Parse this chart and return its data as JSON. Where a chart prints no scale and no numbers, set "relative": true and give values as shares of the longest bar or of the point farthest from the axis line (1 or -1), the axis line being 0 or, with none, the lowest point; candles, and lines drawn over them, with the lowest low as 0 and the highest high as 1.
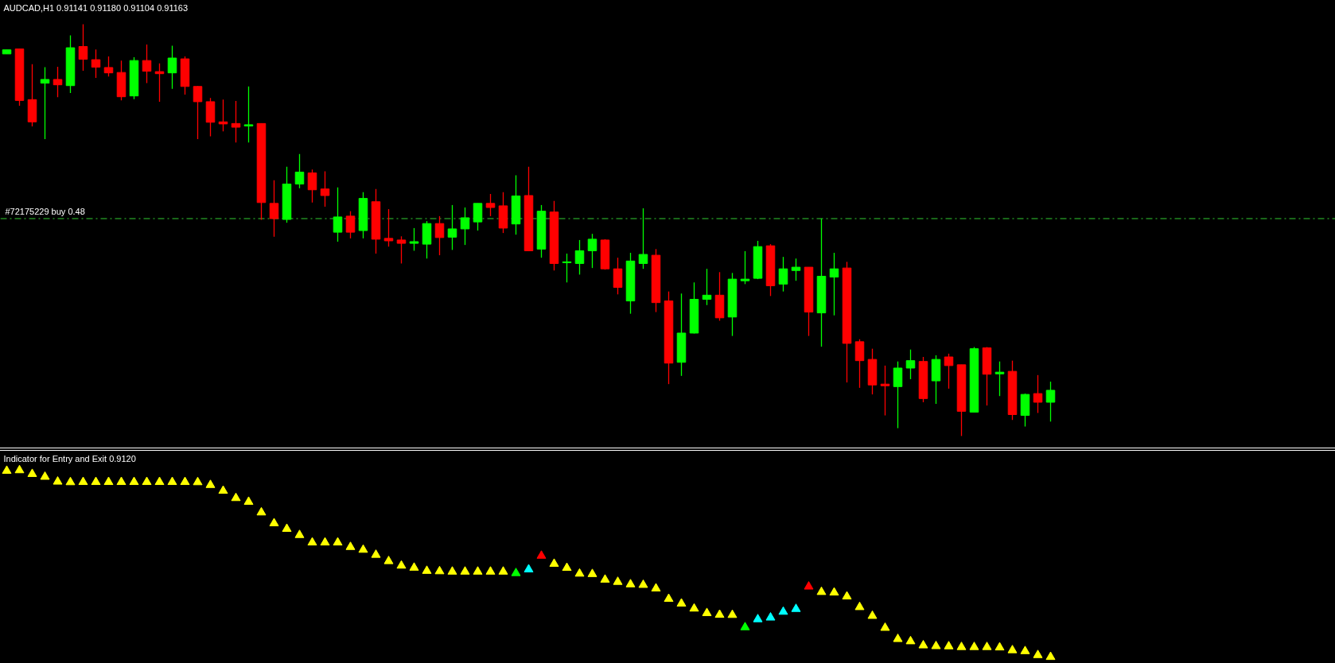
{
  "chart_data": [
    {
      "type": "candlestick",
      "title": "AUDCAD,H1 0.91141 0.91180 0.91104 0.91163",
      "relative": true,
      "categories": [
        null,
        null,
        null,
        null,
        null,
        null,
        null,
        null,
        null,
        null,
        null,
        null,
        null,
        null,
        null,
        null,
        null,
        null,
        null,
        null,
        null,
        null,
        null,
        null,
        null,
        null,
        null,
        null,
        null,
        null,
        null,
        null,
        null,
        null,
        null,
        null,
        null,
        null,
        null,
        null,
        null,
        null,
        null,
        null,
        null,
        null,
        null,
        null,
        null,
        null,
        null,
        null,
        null,
        null,
        null,
        null,
        null,
        null,
        null,
        null,
        null,
        null,
        null,
        null,
        null,
        null,
        null,
        null,
        null,
        null,
        null,
        null,
        null,
        null,
        null,
        null,
        null,
        null,
        null,
        null,
        null,
        null,
        null
      ],
      "ohlc": [
        [
          0.928,
          0.938,
          0.928,
          0.938
        ],
        [
          0.94,
          0.94,
          0.802,
          0.815
        ],
        [
          0.817,
          0.903,
          0.752,
          0.763
        ],
        [
          0.857,
          0.896,
          0.721,
          0.866
        ],
        [
          0.866,
          0.897,
          0.823,
          0.853
        ],
        [
          0.851,
          0.973,
          0.833,
          0.943
        ],
        [
          0.946,
          1.0,
          0.887,
          0.915
        ],
        [
          0.914,
          0.939,
          0.87,
          0.896
        ],
        [
          0.895,
          0.922,
          0.873,
          0.882
        ],
        [
          0.883,
          0.912,
          0.815,
          0.824
        ],
        [
          0.826,
          0.92,
          0.818,
          0.912
        ],
        [
          0.912,
          0.951,
          0.857,
          0.886
        ],
        [
          0.885,
          0.905,
          0.812,
          0.88
        ],
        [
          0.882,
          0.948,
          0.843,
          0.918
        ],
        [
          0.916,
          0.922,
          0.829,
          0.849
        ],
        [
          0.849,
          0.85,
          0.721,
          0.812
        ],
        [
          0.812,
          0.821,
          0.728,
          0.762
        ],
        [
          0.763,
          0.817,
          0.74,
          0.758
        ],
        [
          0.759,
          0.814,
          0.713,
          0.75
        ],
        [
          0.753,
          0.849,
          0.713,
          0.756
        ],
        [
          0.759,
          0.759,
          0.525,
          0.567
        ],
        [
          0.565,
          0.621,
          0.484,
          0.528
        ],
        [
          0.526,
          0.654,
          0.518,
          0.612
        ],
        [
          0.612,
          0.685,
          0.602,
          0.641
        ],
        [
          0.639,
          0.647,
          0.567,
          0.598
        ],
        [
          0.6,
          0.643,
          0.557,
          0.584
        ],
        [
          0.495,
          0.604,
          0.472,
          0.532
        ],
        [
          0.534,
          0.546,
          0.48,
          0.495
        ],
        [
          0.499,
          0.592,
          0.48,
          0.577
        ],
        [
          0.569,
          0.6,
          0.443,
          0.478
        ],
        [
          0.48,
          0.551,
          0.46,
          0.474
        ],
        [
          0.476,
          0.485,
          0.419,
          0.468
        ],
        [
          0.468,
          0.505,
          0.45,
          0.472
        ],
        [
          0.466,
          0.522,
          0.431,
          0.516
        ],
        [
          0.516,
          0.534,
          0.439,
          0.482
        ],
        [
          0.483,
          0.561,
          0.452,
          0.503
        ],
        [
          0.503,
          0.555,
          0.464,
          0.53
        ],
        [
          0.52,
          0.565,
          0.499,
          0.565
        ],
        [
          0.565,
          0.588,
          0.534,
          0.555
        ],
        [
          0.559,
          0.592,
          0.493,
          0.505
        ],
        [
          0.515,
          0.633,
          0.489,
          0.583
        ],
        [
          0.584,
          0.654,
          0.449,
          0.45
        ],
        [
          0.454,
          0.561,
          0.433,
          0.546
        ],
        [
          0.544,
          0.571,
          0.402,
          0.419
        ],
        [
          0.421,
          0.443,
          0.373,
          0.423
        ],
        [
          0.419,
          0.476,
          0.392,
          0.45
        ],
        [
          0.45,
          0.491,
          0.408,
          0.478
        ],
        [
          0.476,
          0.478,
          0.404,
          0.406
        ],
        [
          0.406,
          0.433,
          0.344,
          0.361
        ],
        [
          0.328,
          0.445,
          0.297,
          0.425
        ],
        [
          0.419,
          0.553,
          0.406,
          0.441
        ],
        [
          0.439,
          0.454,
          0.301,
          0.324
        ],
        [
          0.328,
          0.351,
          0.126,
          0.177
        ],
        [
          0.179,
          0.346,
          0.146,
          0.25
        ],
        [
          0.25,
          0.373,
          0.249,
          0.332
        ],
        [
          0.332,
          0.406,
          0.318,
          0.342
        ],
        [
          0.342,
          0.398,
          0.28,
          0.287
        ],
        [
          0.289,
          0.396,
          0.243,
          0.381
        ],
        [
          0.377,
          0.449,
          0.369,
          0.381
        ],
        [
          0.383,
          0.474,
          0.381,
          0.46
        ],
        [
          0.462,
          0.466,
          0.34,
          0.365
        ],
        [
          0.369,
          0.435,
          0.351,
          0.406
        ],
        [
          0.402,
          0.431,
          0.377,
          0.41
        ],
        [
          0.41,
          0.41,
          0.243,
          0.301
        ],
        [
          0.299,
          0.528,
          0.217,
          0.388
        ],
        [
          0.386,
          0.445,
          0.293,
          0.406
        ],
        [
          0.408,
          0.423,
          0.13,
          0.225
        ],
        [
          0.229,
          0.235,
          0.117,
          0.183
        ],
        [
          0.186,
          0.212,
          0.101,
          0.124
        ],
        [
          0.126,
          0.171,
          0.05,
          0.122
        ],
        [
          0.12,
          0.181,
          0.019,
          0.165
        ],
        [
          0.165,
          0.21,
          0.138,
          0.183
        ],
        [
          0.181,
          0.192,
          0.082,
          0.091
        ],
        [
          0.134,
          0.196,
          0.078,
          0.186
        ],
        [
          0.192,
          0.2,
          0.115,
          0.171
        ],
        [
          0.173,
          0.173,
          0.0,
          0.06
        ],
        [
          0.058,
          0.216,
          0.058,
          0.212
        ],
        [
          0.214,
          0.216,
          0.074,
          0.15
        ],
        [
          0.151,
          0.181,
          0.097,
          0.155
        ],
        [
          0.157,
          0.183,
          0.039,
          0.052
        ],
        [
          0.05,
          0.103,
          0.023,
          0.101
        ],
        [
          0.103,
          0.148,
          0.056,
          0.082
        ],
        [
          0.082,
          0.132,
          0.035,
          0.111
        ]
      ],
      "colors": [
        "#00ff00",
        "#ff0000",
        "#ff0000",
        "#00ff00",
        "#ff0000",
        "#00ff00",
        "#ff0000",
        "#ff0000",
        "#ff0000",
        "#ff0000",
        "#00ff00",
        "#ff0000",
        "#ff0000",
        "#00ff00",
        "#ff0000",
        "#ff0000",
        "#ff0000",
        "#ff0000",
        "#ff0000",
        "#00ff00",
        "#ff0000",
        "#ff0000",
        "#00ff00",
        "#00ff00",
        "#ff0000",
        "#ff0000",
        "#00ff00",
        "#ff0000",
        "#00ff00",
        "#ff0000",
        "#ff0000",
        "#ff0000",
        "#00ff00",
        "#00ff00",
        "#ff0000",
        "#00ff00",
        "#00ff00",
        "#00ff00",
        "#ff0000",
        "#ff0000",
        "#00ff00",
        "#ff0000",
        "#00ff00",
        "#ff0000",
        "#00ff00",
        "#00ff00",
        "#00ff00",
        "#ff0000",
        "#ff0000",
        "#00ff00",
        "#00ff00",
        "#ff0000",
        "#ff0000",
        "#00ff00",
        "#00ff00",
        "#00ff00",
        "#ff0000",
        "#00ff00",
        "#00ff00",
        "#00ff00",
        "#ff0000",
        "#00ff00",
        "#00ff00",
        "#ff0000",
        "#00ff00",
        "#00ff00",
        "#ff0000",
        "#ff0000",
        "#ff0000",
        "#ff0000",
        "#00ff00",
        "#00ff00",
        "#ff0000",
        "#00ff00",
        "#ff0000",
        "#ff0000",
        "#00ff00",
        "#ff0000",
        "#00ff00",
        "#ff0000",
        "#00ff00",
        "#ff0000",
        "#00ff00"
      ],
      "ref_lines": [
        {
          "axis": "y",
          "value": 0.528,
          "label": "#72175229 buy 0.48",
          "color": "#32cd32",
          "line_style": "dashed"
        }
      ]
    },
    {
      "type": "scatter",
      "title": "Indicator for Entry and Exit 0.9120",
      "relative": true,
      "marker": "triangle",
      "categories": [
        null,
        null,
        null,
        null,
        null,
        null,
        null,
        null,
        null,
        null,
        null,
        null,
        null,
        null,
        null,
        null,
        null,
        null,
        null,
        null,
        null,
        null,
        null,
        null,
        null,
        null,
        null,
        null,
        null,
        null,
        null,
        null,
        null,
        null,
        null,
        null,
        null,
        null,
        null,
        null,
        null,
        null,
        null,
        null,
        null,
        null,
        null,
        null,
        null,
        null,
        null,
        null,
        null,
        null,
        null,
        null,
        null,
        null,
        null,
        null,
        null,
        null,
        null,
        null,
        null,
        null,
        null,
        null,
        null,
        null,
        null,
        null,
        null,
        null,
        null,
        null,
        null,
        null,
        null,
        null,
        null,
        null,
        null
      ],
      "series": [
        {
          "color": "#ffff00",
          "values": [
            0.997,
            1.0,
            0.98,
            0.965,
            0.939,
            0.936,
            0.937,
            0.937,
            0.937,
            0.937,
            0.937,
            0.937,
            0.937,
            0.937,
            0.937,
            0.936,
            0.921,
            0.89,
            0.851,
            0.831,
            0.774,
            0.716,
            0.686,
            0.653,
            0.613,
            0.613,
            0.613,
            0.589,
            0.574,
            0.547,
            0.513,
            0.489,
            0.478,
            0.461,
            0.459,
            0.457,
            0.457,
            0.457,
            0.457,
            0.457,
            null,
            null,
            null,
            0.499,
            0.477,
            0.446,
            0.444,
            0.414,
            0.402,
            0.389,
            0.386,
            0.367,
            0.311,
            0.286,
            0.259,
            0.235,
            0.226,
            0.225,
            null,
            null,
            null,
            null,
            null,
            null,
            0.348,
            0.345,
            0.324,
            0.267,
            0.22,
            0.156,
            0.096,
            0.084,
            0.062,
            0.058,
            0.057,
            0.053,
            0.053,
            0.053,
            0.051,
            0.036,
            0.031,
            0.01,
            0.0
          ]
        },
        {
          "color": "#00ffff",
          "values": [
            null,
            null,
            null,
            null,
            null,
            null,
            null,
            null,
            null,
            null,
            null,
            null,
            null,
            null,
            null,
            null,
            null,
            null,
            null,
            null,
            null,
            null,
            null,
            null,
            null,
            null,
            null,
            null,
            null,
            null,
            null,
            null,
            null,
            null,
            null,
            null,
            null,
            null,
            null,
            null,
            null,
            0.469,
            null,
            null,
            null,
            null,
            null,
            null,
            null,
            null,
            null,
            null,
            null,
            null,
            null,
            null,
            null,
            null,
            null,
            0.202,
            0.211,
            0.242,
            0.257,
            null,
            null,
            null,
            null,
            null,
            null,
            null,
            null,
            null,
            null,
            null,
            null,
            null,
            null,
            null,
            null,
            null,
            null,
            null,
            null
          ]
        },
        {
          "color": "#00ff00",
          "values": [
            null,
            null,
            null,
            null,
            null,
            null,
            null,
            null,
            null,
            null,
            null,
            null,
            null,
            null,
            null,
            null,
            null,
            null,
            null,
            null,
            null,
            null,
            null,
            null,
            null,
            null,
            null,
            null,
            null,
            null,
            null,
            null,
            null,
            null,
            null,
            null,
            null,
            null,
            null,
            null,
            0.449,
            null,
            null,
            null,
            null,
            null,
            null,
            null,
            null,
            null,
            null,
            null,
            null,
            null,
            null,
            null,
            null,
            null,
            0.159,
            null,
            null,
            null,
            null,
            null,
            null,
            null,
            null,
            null,
            null,
            null,
            null,
            null,
            null,
            null,
            null,
            null,
            null,
            null,
            null,
            null,
            null,
            null,
            null
          ]
        },
        {
          "color": "#ff0000",
          "values": [
            null,
            null,
            null,
            null,
            null,
            null,
            null,
            null,
            null,
            null,
            null,
            null,
            null,
            null,
            null,
            null,
            null,
            null,
            null,
            null,
            null,
            null,
            null,
            null,
            null,
            null,
            null,
            null,
            null,
            null,
            null,
            null,
            null,
            null,
            null,
            null,
            null,
            null,
            null,
            null,
            null,
            null,
            0.542,
            null,
            null,
            null,
            null,
            null,
            null,
            null,
            null,
            null,
            null,
            null,
            null,
            null,
            null,
            null,
            null,
            null,
            null,
            null,
            null,
            0.377,
            null,
            null,
            null,
            null,
            null,
            null,
            null,
            null,
            null,
            null,
            null,
            null,
            null,
            null,
            null,
            null,
            null,
            null,
            null
          ]
        }
      ]
    }
  ]
}
